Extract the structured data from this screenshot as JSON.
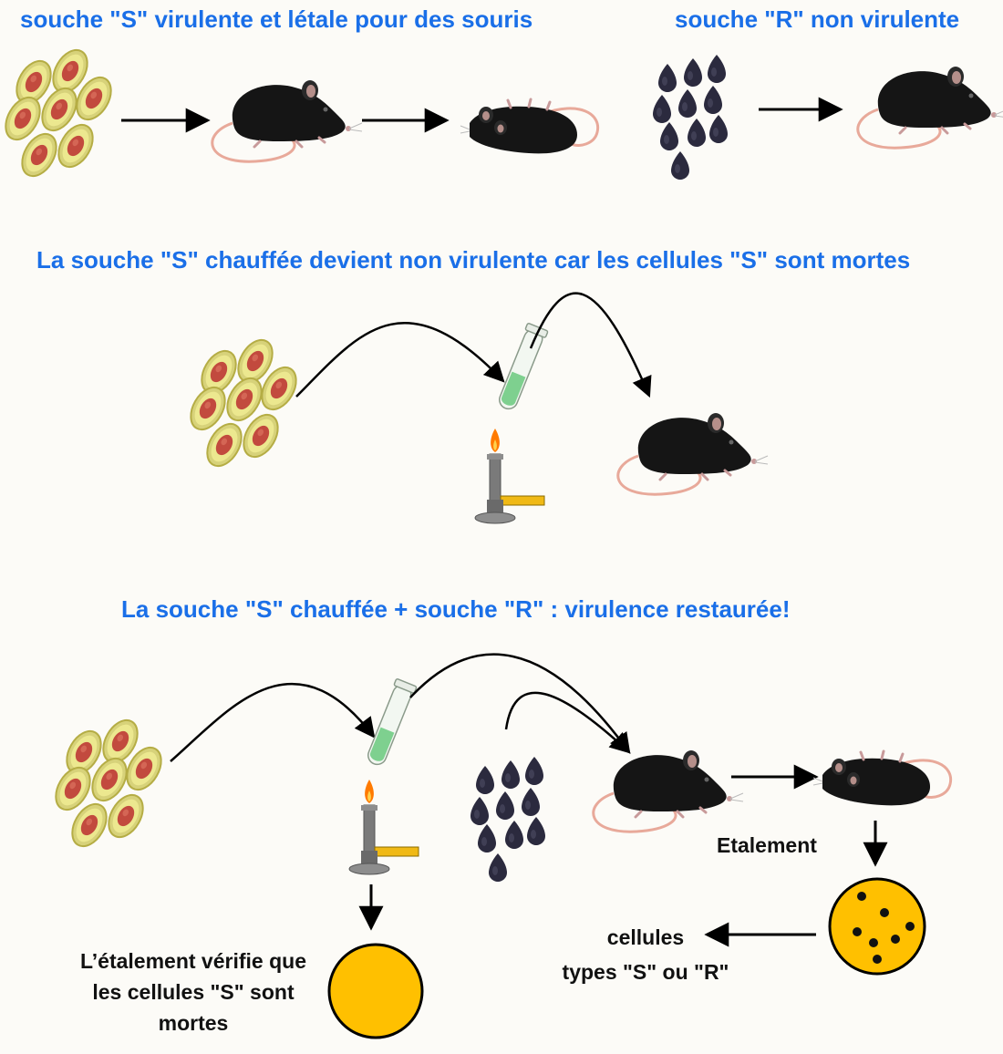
{
  "headings": {
    "virulent": "souche \"S\" virulente et létale pour des souris",
    "non_virulent": "souche \"R\" non virulente",
    "heated": "La souche \"S\" chauffée devient non virulente car les cellules \"S\" sont mortes",
    "mix": "La souche \"S\" chauffée + souche \"R\" : virulence restaurée!"
  },
  "labels": {
    "etalement": "Etalement",
    "cellules_line1": "cellules",
    "cellules_line2": "types \"S\" ou \"R\"",
    "verifie_line1": "L’étalement vérifie que",
    "verifie_line2": "les cellules \"S\" sont",
    "verifie_line3": "mortes"
  },
  "colors": {
    "heading": "#1a6fe8",
    "s_cell_capsule": "#e8e27a",
    "s_cell_body": "#c14a3e",
    "r_cell": "#2b2a3e",
    "mouse": "#151515",
    "tail": "#e8a99a",
    "petri": "#ffc000",
    "liquid": "#7ed08f",
    "flame": "#ff7a00"
  },
  "icons": [
    "s-cell-cluster-icon",
    "r-cell-cluster-icon",
    "mouse-icon",
    "dead-mouse-icon",
    "test-tube-icon",
    "bunsen-burner-icon",
    "petri-dish-icon",
    "arrow-icon"
  ]
}
